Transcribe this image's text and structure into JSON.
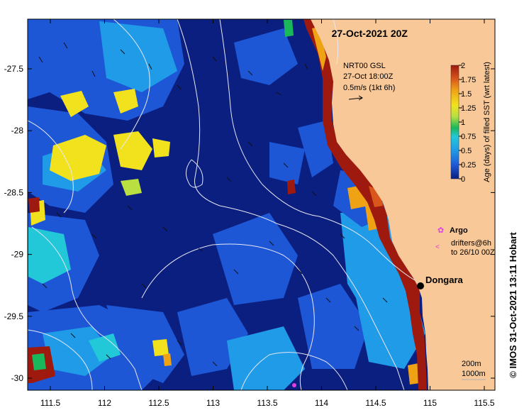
{
  "map": {
    "title": "27-Oct-2021 20Z",
    "current_box": {
      "line1": "NRT00 GSL",
      "line2": "27-Oct 18:00Z",
      "line3": "0.5m/s (1kt 6h)"
    },
    "colorbar": {
      "label": "Age (days) of filled SST (wrt latest)",
      "ticks": [
        "0",
        "0.25",
        "0.5",
        "0.75",
        "1",
        "1.25",
        "1.5",
        "1.75",
        "2"
      ],
      "colors": [
        "#0a1e7d",
        "#1f58d8",
        "#1f9be8",
        "#22c8d8",
        "#19b85a",
        "#b9e040",
        "#f2e21e",
        "#f0a215",
        "#d9571a",
        "#9e1a0e"
      ]
    },
    "legend": {
      "argo_label": "Argo",
      "drifters_line1": "drifters@6h",
      "drifters_line2": "to 26/10 00Z"
    },
    "place": {
      "name": "Dongara"
    },
    "depth_legend": {
      "line1": "200m",
      "line2": "1000m"
    },
    "credit": "© IMOS 31-Oct-2021 13:11 Hobart",
    "x_ticks": [
      "111.5",
      "112",
      "112.5",
      "113",
      "113.5",
      "114",
      "114.5",
      "115",
      "115.5"
    ],
    "y_ticks": [
      "-27.5",
      "-28",
      "-28.5",
      "-29",
      "-29.5",
      "-30"
    ],
    "colors": {
      "land": "#f8c898",
      "contour": "#e8e8f4",
      "argo": "#e040e0"
    }
  }
}
